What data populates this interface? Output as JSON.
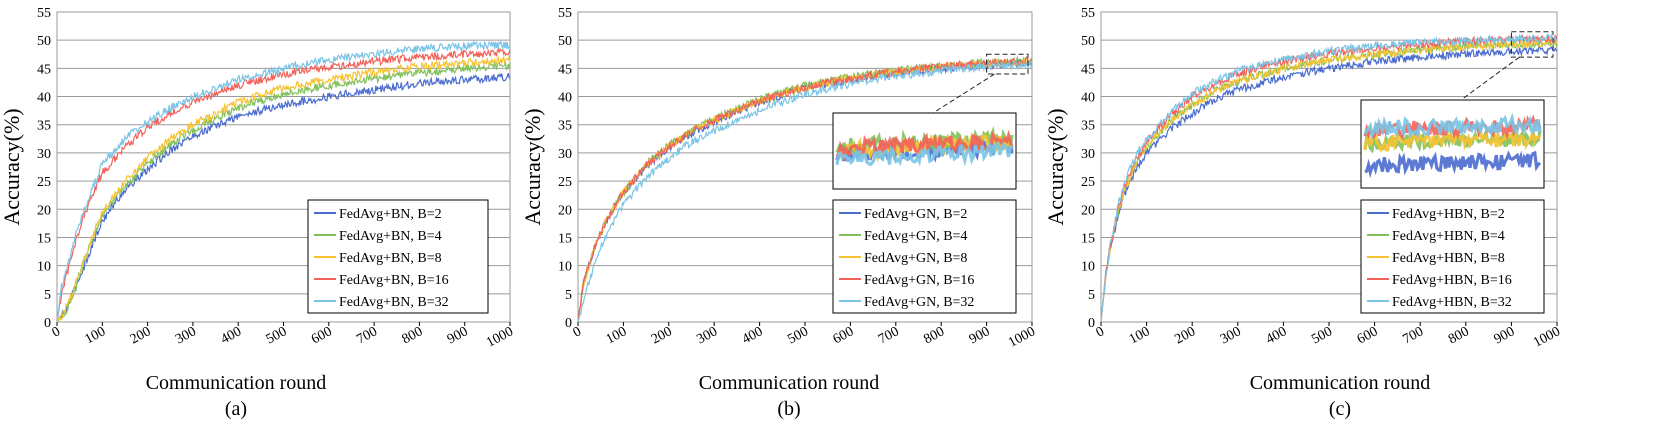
{
  "figure": {
    "series_colors": [
      "#4a6ccf",
      "#82c15a",
      "#f4c232",
      "#f2625a",
      "#7ac4e6"
    ]
  },
  "chart_data": [
    {
      "type": "line",
      "panel_label": "(a)",
      "xlabel": "Communication round",
      "ylabel": "Accuracy(%)",
      "xlim": [
        0,
        1000
      ],
      "ylim": [
        0,
        55
      ],
      "x_ticks": [
        0,
        100,
        200,
        300,
        400,
        500,
        600,
        700,
        800,
        900,
        1000
      ],
      "y_ticks": [
        0,
        5,
        10,
        15,
        20,
        25,
        30,
        35,
        40,
        45,
        50,
        55
      ],
      "grid": "horizontal",
      "legend_position": "bottom-right",
      "x": [
        0,
        10,
        20,
        40,
        60,
        80,
        100,
        150,
        200,
        250,
        300,
        400,
        500,
        600,
        700,
        800,
        900,
        1000
      ],
      "series": [
        {
          "name": "FedAvg+BN, B=2",
          "values": [
            0,
            1,
            2,
            6,
            10,
            14,
            18,
            23.5,
            27,
            30.5,
            33,
            36.5,
            38.5,
            40,
            41.2,
            42.3,
            43,
            43.5
          ]
        },
        {
          "name": "FedAvg+BN, B=4",
          "values": [
            0,
            1,
            2,
            6,
            11,
            15,
            19,
            24,
            28,
            31.5,
            34,
            38,
            40.5,
            42,
            43.2,
            44.2,
            45,
            45.5
          ]
        },
        {
          "name": "FedAvg+BN, B=8",
          "values": [
            0,
            1,
            2.5,
            6.5,
            11,
            15.5,
            19.5,
            25,
            29,
            32.5,
            35,
            39,
            41.5,
            43,
            44.3,
            45.3,
            46,
            46.5
          ]
        },
        {
          "name": "FedAvg+BN, B=16",
          "values": [
            0,
            5,
            8,
            14,
            19,
            23,
            26.5,
            31,
            34.5,
            37,
            39,
            42,
            44,
            45.2,
            46.2,
            47,
            47.5,
            47.8
          ]
        },
        {
          "name": "FedAvg+BN, B=32",
          "values": [
            0,
            6,
            9,
            15,
            20,
            24,
            28,
            32.5,
            35.5,
            38,
            40,
            43,
            45,
            46.5,
            47.6,
            48.4,
            49,
            49.2
          ]
        }
      ]
    },
    {
      "type": "line",
      "panel_label": "(b)",
      "xlabel": "Communication round",
      "ylabel": "Accuracy(%)",
      "xlim": [
        0,
        1000
      ],
      "ylim": [
        0,
        55
      ],
      "x_ticks": [
        0,
        100,
        200,
        300,
        400,
        500,
        600,
        700,
        800,
        900,
        1000
      ],
      "y_ticks": [
        0,
        5,
        10,
        15,
        20,
        25,
        30,
        35,
        40,
        45,
        50,
        55
      ],
      "grid": "horizontal",
      "legend_position": "bottom-right",
      "inset": "zoom of rounds 900-1000 near 44-47%",
      "x": [
        0,
        10,
        20,
        40,
        60,
        80,
        100,
        150,
        200,
        250,
        300,
        400,
        500,
        600,
        700,
        800,
        900,
        1000
      ],
      "series": [
        {
          "name": "FedAvg+GN, B=2",
          "values": [
            0,
            6,
            9,
            14,
            17.5,
            20.5,
            23,
            27.5,
            31,
            33.5,
            35.5,
            39,
            41.5,
            43,
            44.2,
            45,
            45.6,
            46
          ]
        },
        {
          "name": "FedAvg+GN, B=4",
          "values": [
            0,
            6,
            9,
            14,
            17.5,
            20.5,
            23,
            28,
            31.5,
            34,
            36,
            39.5,
            42,
            43.5,
            44.6,
            45.4,
            46,
            46.4
          ]
        },
        {
          "name": "FedAvg+GN, B=8",
          "values": [
            0,
            6,
            9,
            14,
            17.5,
            20.5,
            23,
            27.8,
            31.2,
            33.8,
            35.8,
            39.2,
            41.7,
            43.2,
            44.4,
            45.2,
            45.8,
            46.2
          ]
        },
        {
          "name": "FedAvg+GN, B=16",
          "values": [
            0,
            6,
            9,
            14,
            17.5,
            20.5,
            23,
            27.8,
            31.2,
            33.8,
            35.8,
            39.2,
            41.7,
            43.2,
            44.4,
            45.3,
            45.9,
            46.3
          ]
        },
        {
          "name": "FedAvg+GN, B=32",
          "values": [
            0,
            3,
            6,
            11,
            15,
            18,
            21,
            25.5,
            29,
            32,
            34,
            37.5,
            40.5,
            42.3,
            43.6,
            44.6,
            45.3,
            45.8
          ]
        }
      ]
    },
    {
      "type": "line",
      "panel_label": "(c)",
      "xlabel": "Communication round",
      "ylabel": "Accuracy(%)",
      "xlim": [
        0,
        1000
      ],
      "ylim": [
        0,
        55
      ],
      "x_ticks": [
        0,
        100,
        200,
        300,
        400,
        500,
        600,
        700,
        800,
        900,
        1000
      ],
      "y_ticks": [
        0,
        5,
        10,
        15,
        20,
        25,
        30,
        35,
        40,
        45,
        50,
        55
      ],
      "grid": "horizontal",
      "legend_position": "bottom-right",
      "inset": "zoom of rounds 900-1000 near 47-51%",
      "x": [
        0,
        10,
        20,
        40,
        60,
        80,
        100,
        150,
        200,
        250,
        300,
        400,
        500,
        600,
        700,
        800,
        900,
        1000
      ],
      "series": [
        {
          "name": "FedAvg+HBN, B=2",
          "values": [
            0,
            8,
            13,
            20,
            24.5,
            27.5,
            30,
            34,
            37,
            39.5,
            41.2,
            43.5,
            45,
            46.2,
            47,
            47.6,
            48,
            48.3
          ]
        },
        {
          "name": "FedAvg+HBN, B=4",
          "values": [
            0,
            8,
            13,
            20.5,
            25,
            28.5,
            31,
            35.5,
            38.5,
            41,
            42.7,
            45,
            46.5,
            47.5,
            48.3,
            48.9,
            49.3,
            49.6
          ]
        },
        {
          "name": "FedAvg+HBN, B=8",
          "values": [
            0,
            8,
            13,
            20.5,
            25,
            28.5,
            31,
            35.5,
            38.5,
            41,
            42.7,
            45,
            46.5,
            47.5,
            48.3,
            48.9,
            49.3,
            49.6
          ]
        },
        {
          "name": "FedAvg+HBN, B=16",
          "values": [
            0,
            8,
            13.5,
            21,
            26,
            29.5,
            32,
            36.5,
            40,
            42.2,
            44,
            46.3,
            47.7,
            48.7,
            49.3,
            49.8,
            50.1,
            50.3
          ]
        },
        {
          "name": "FedAvg+HBN, B=32",
          "values": [
            0,
            8,
            13.5,
            21.5,
            26.5,
            30,
            32.5,
            37,
            40.5,
            42.7,
            44.5,
            46.6,
            48,
            49,
            49.6,
            50,
            50.2,
            50.4
          ]
        }
      ]
    }
  ]
}
